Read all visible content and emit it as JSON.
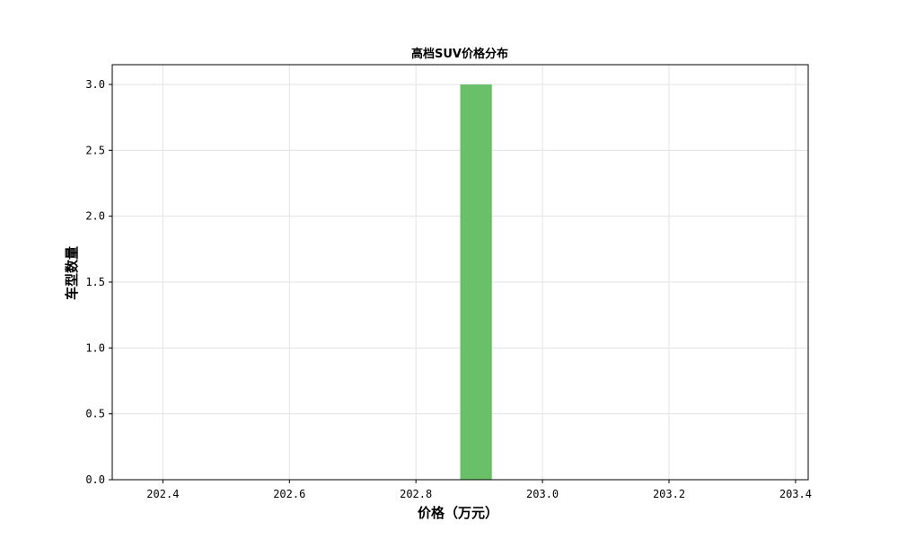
{
  "chart_data": {
    "type": "bar",
    "title": "高档SUV价格分布",
    "xlabel": "价格（万元）",
    "ylabel": "车型数量",
    "xlim": [
      202.32,
      203.42
    ],
    "ylim": [
      0,
      3.15
    ],
    "xticks": [
      202.4,
      202.6,
      202.8,
      203.0,
      203.2,
      203.4
    ],
    "xtick_labels": [
      "202.4",
      "202.6",
      "202.8",
      "203.0",
      "203.2",
      "203.4"
    ],
    "yticks": [
      0.0,
      0.5,
      1.0,
      1.5,
      2.0,
      2.5,
      3.0
    ],
    "ytick_labels": [
      "0.0",
      "0.5",
      "1.0",
      "1.5",
      "2.0",
      "2.5",
      "3.0"
    ],
    "bars": [
      {
        "x_start": 202.87,
        "x_end": 202.92,
        "value": 3
      }
    ],
    "bar_color": "#6abf69",
    "grid": true
  }
}
